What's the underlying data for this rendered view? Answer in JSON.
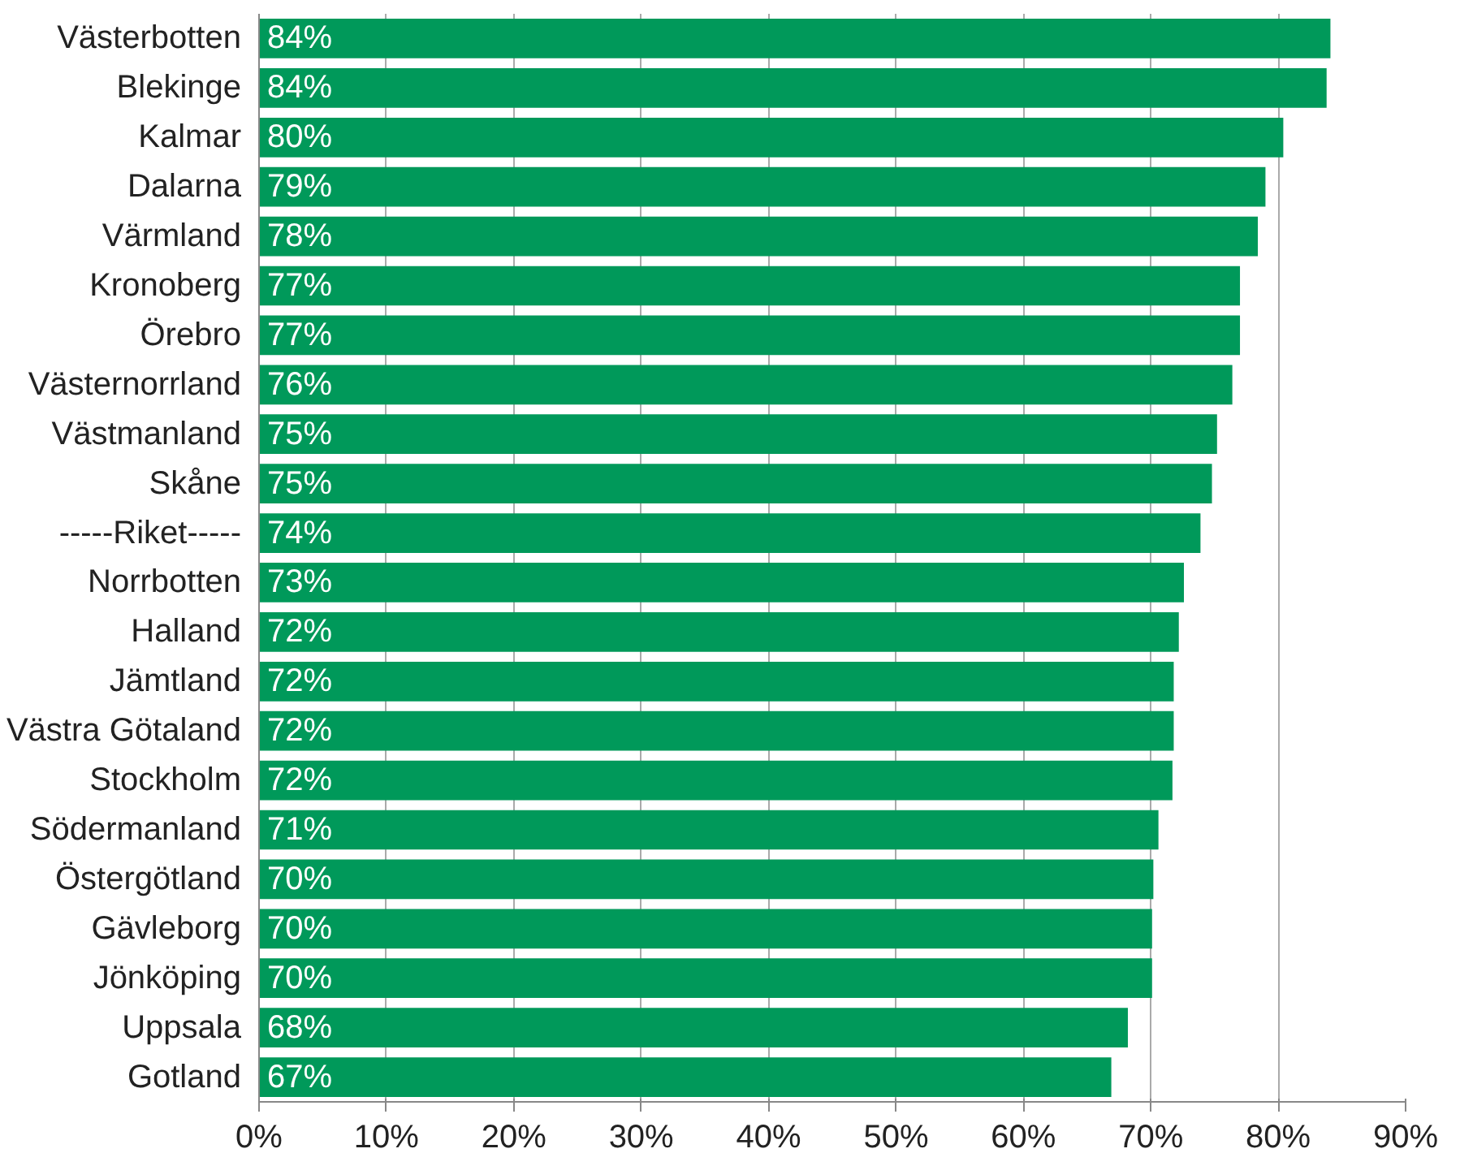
{
  "chart_data": {
    "type": "bar",
    "orientation": "horizontal",
    "color": "#00995a",
    "grid": "x",
    "categories": [
      "Västerbotten",
      "Blekinge",
      "Kalmar",
      "Dalarna",
      "Värmland",
      "Kronoberg",
      "Örebro",
      "Västernorrland",
      "Västmanland",
      "Skåne",
      "-----Riket-----",
      "Norrbotten",
      "Halland",
      "Jämtland",
      "Västra Götaland",
      "Stockholm",
      "Södermanland",
      "Östergötland",
      "Gävleborg",
      "Jönköping",
      "Uppsala",
      "Gotland"
    ],
    "values": [
      84.1,
      83.8,
      80.4,
      79.0,
      78.4,
      77.0,
      77.0,
      76.4,
      75.2,
      74.8,
      73.9,
      72.6,
      72.2,
      71.8,
      71.8,
      71.7,
      70.6,
      70.2,
      70.1,
      70.1,
      68.2,
      66.9
    ],
    "value_labels": [
      "84%",
      "84%",
      "80%",
      "79%",
      "78%",
      "77%",
      "77%",
      "76%",
      "75%",
      "75%",
      "74%",
      "73%",
      "72%",
      "72%",
      "72%",
      "72%",
      "71%",
      "70%",
      "70%",
      "70%",
      "68%",
      "67%"
    ],
    "xlim": [
      0,
      90
    ],
    "xticks": [
      {
        "value": 0,
        "label": "0%"
      },
      {
        "value": 10,
        "label": "10%"
      },
      {
        "value": 20,
        "label": "20%"
      },
      {
        "value": 30,
        "label": "30%"
      },
      {
        "value": 40,
        "label": "40%"
      },
      {
        "value": 50,
        "label": "50%"
      },
      {
        "value": 60,
        "label": "60%"
      },
      {
        "value": 70,
        "label": "70%"
      },
      {
        "value": 80,
        "label": "80%"
      },
      {
        "value": 90,
        "label": "90%"
      }
    ]
  }
}
